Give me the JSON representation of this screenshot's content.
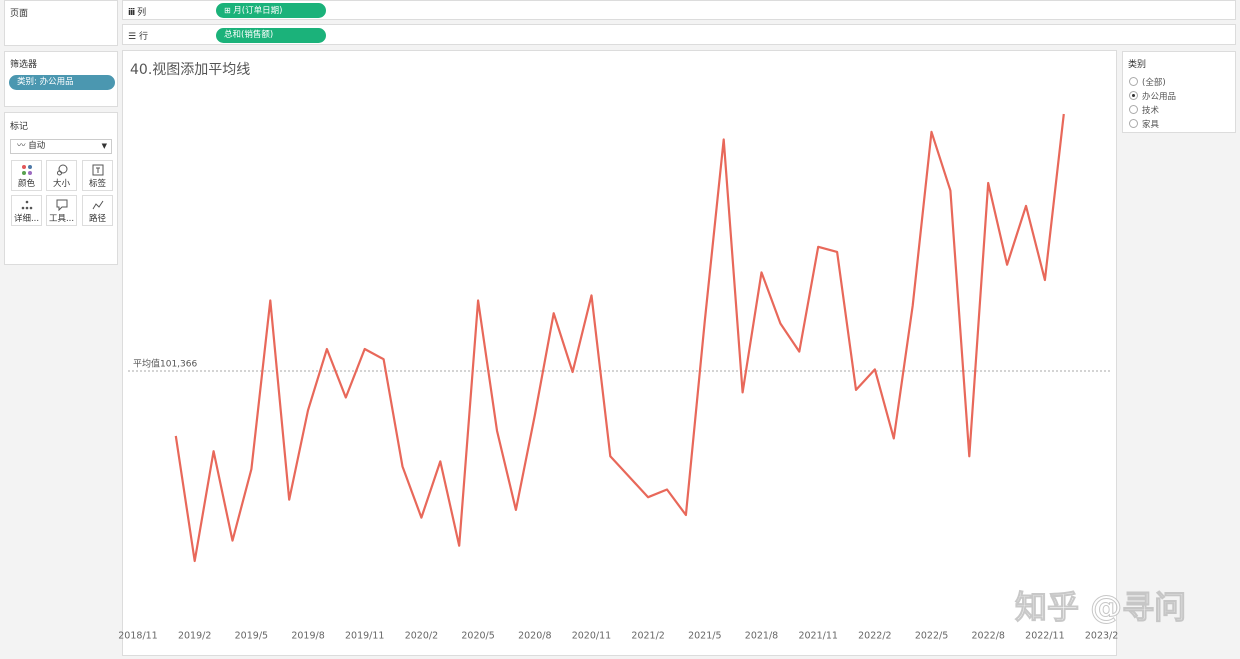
{
  "ui": {
    "pages": "页面",
    "columns": {
      "label": "列",
      "pill": "月(订单日期)"
    },
    "rows": {
      "label": "行",
      "pill": "总和(销售额)"
    },
    "filters": {
      "title": "筛选器",
      "pill": "类别: 办公用品"
    },
    "marks": {
      "title": "标记",
      "type": "自动",
      "buttons": [
        "颜色",
        "大小",
        "标签",
        "详细...",
        "工具...",
        "路径"
      ]
    },
    "legend": {
      "title": "类别",
      "options": [
        "(全部)",
        "办公用品",
        "技术",
        "家具"
      ],
      "selected": 1
    }
  },
  "watermark": "知乎 @寻问",
  "chart_data": {
    "type": "line",
    "title": "40.视图添加平均线",
    "categories": [
      "2018/11",
      null,
      null,
      "2019/2",
      null,
      null,
      "2019/5",
      null,
      null,
      "2019/8",
      null,
      null,
      "2019/11",
      null,
      null,
      "2020/2",
      null,
      null,
      "2020/5",
      null,
      null,
      "2020/8",
      null,
      null,
      "2020/11",
      null,
      null,
      "2021/2",
      null,
      null,
      "2021/5",
      null,
      null,
      "2021/8",
      null,
      null,
      "2021/11",
      null,
      null,
      "2022/2",
      null,
      null,
      "2022/5",
      null,
      null,
      "2022/8",
      null,
      null,
      "2022/11",
      null,
      null,
      "2023/2"
    ],
    "values": [
      null,
      null,
      76000,
      27000,
      70000,
      35000,
      63000,
      129000,
      51000,
      86000,
      110000,
      91000,
      110000,
      106000,
      64000,
      44000,
      66000,
      33000,
      129000,
      78000,
      47000,
      84000,
      124000,
      101000,
      131000,
      68000,
      60000,
      52000,
      55000,
      45000,
      121000,
      192000,
      93000,
      140000,
      120000,
      109000,
      150000,
      148000,
      94000,
      102000,
      75000,
      127000,
      195000,
      172000,
      68000,
      175000,
      143000,
      166000,
      137000,
      202000,
      null,
      null
    ],
    "color": "#e8685a",
    "ylim": [
      0,
      220000
    ],
    "reference_line": {
      "value": 101366,
      "label": "平均值101,366"
    }
  }
}
